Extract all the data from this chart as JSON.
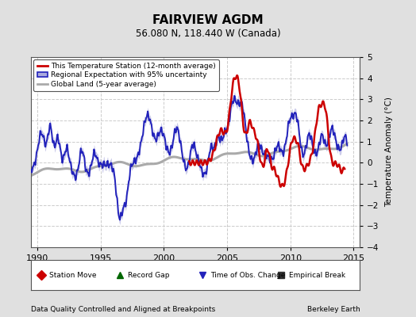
{
  "title": "FAIRVIEW AGDM",
  "subtitle": "56.080 N, 118.440 W (Canada)",
  "ylabel": "Temperature Anomaly (°C)",
  "xlabel_left": "Data Quality Controlled and Aligned at Breakpoints",
  "xlabel_right": "Berkeley Earth",
  "xlim": [
    1989.5,
    2015.5
  ],
  "ylim": [
    -4,
    5
  ],
  "yticks": [
    -4,
    -3,
    -2,
    -1,
    0,
    1,
    2,
    3,
    4,
    5
  ],
  "xticks": [
    1990,
    1995,
    2000,
    2005,
    2010,
    2015
  ],
  "bg_color": "#e0e0e0",
  "plot_bg_color": "#ffffff",
  "grid_color": "#cccccc",
  "red_line_color": "#cc0000",
  "blue_line_color": "#2222bb",
  "blue_fill_color": "#aaaadd",
  "gray_line_color": "#aaaaaa",
  "legend1_entries": [
    "This Temperature Station (12-month average)",
    "Regional Expectation with 95% uncertainty",
    "Global Land (5-year average)"
  ],
  "legend2_entries": [
    "Station Move",
    "Record Gap",
    "Time of Obs. Change",
    "Empirical Break"
  ],
  "legend2_colors": [
    "#cc0000",
    "#006600",
    "#2222bb",
    "#333333"
  ],
  "legend2_markers": [
    "D",
    "^",
    "v",
    "s"
  ]
}
